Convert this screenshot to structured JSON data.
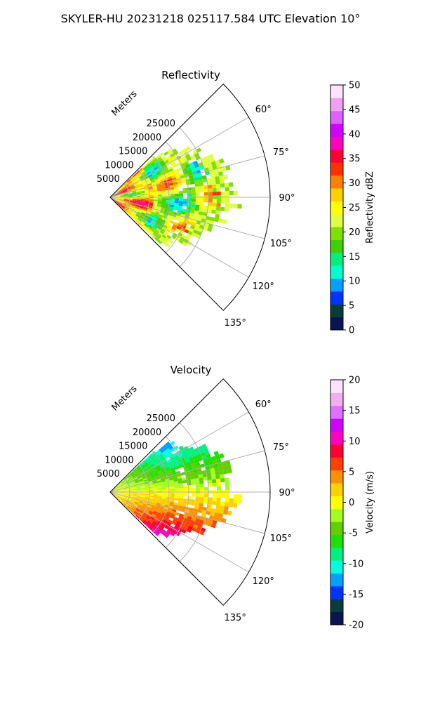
{
  "figure": {
    "title": "SKYLER-HU  20231218  025117.584 UTC Elevation 10°"
  },
  "chart_data": [
    {
      "type": "polar-sector",
      "title": "Reflectivity",
      "radial_axis_label": "Meters",
      "radial_ticks": [
        "5000",
        "10000",
        "15000",
        "20000",
        "25000"
      ],
      "azimuth_ticks": [
        "60°",
        "75°",
        "90°",
        "105°",
        "120°",
        "135°"
      ],
      "sector_deg": [
        45,
        135
      ],
      "colorbar": {
        "label": "Reflectivity dBZ",
        "ticks": [
          "0",
          "5",
          "10",
          "15",
          "20",
          "25",
          "30",
          "35",
          "40",
          "45",
          "50"
        ],
        "range": [
          0,
          50
        ],
        "stops": [
          "#0a1450",
          "#0a3c3c",
          "#0033ff",
          "#00a0ff",
          "#00ffd0",
          "#00f080",
          "#40d000",
          "#80e000",
          "#e0ff40",
          "#ffff00",
          "#ffd000",
          "#ff8000",
          "#ff3000",
          "#ff0030",
          "#ff00c0",
          "#d000ff",
          "#e060ff",
          "#f0a0f0",
          "#ffe0ff"
        ]
      }
    },
    {
      "type": "polar-sector",
      "title": "Velocity",
      "radial_axis_label": "Meters",
      "radial_ticks": [
        "5000",
        "10000",
        "15000",
        "20000",
        "25000"
      ],
      "azimuth_ticks": [
        "60°",
        "75°",
        "90°",
        "105°",
        "120°",
        "135°"
      ],
      "sector_deg": [
        45,
        135
      ],
      "colorbar": {
        "label": "Velocity (m/s)",
        "ticks": [
          "-20",
          "-15",
          "-10",
          "-5",
          "0",
          "5",
          "10",
          "15",
          "20"
        ],
        "range": [
          -20,
          20
        ],
        "stops": [
          "#0a1450",
          "#0a3c3c",
          "#0033ff",
          "#00a0ff",
          "#00ffe0",
          "#00f080",
          "#20e000",
          "#60d000",
          "#a0ff20",
          "#ffff00",
          "#ffd000",
          "#ff9000",
          "#ff4000",
          "#ff0030",
          "#ff00c0",
          "#d000ff",
          "#e070ff",
          "#f0b0f0",
          "#ffe0ff"
        ]
      }
    }
  ]
}
